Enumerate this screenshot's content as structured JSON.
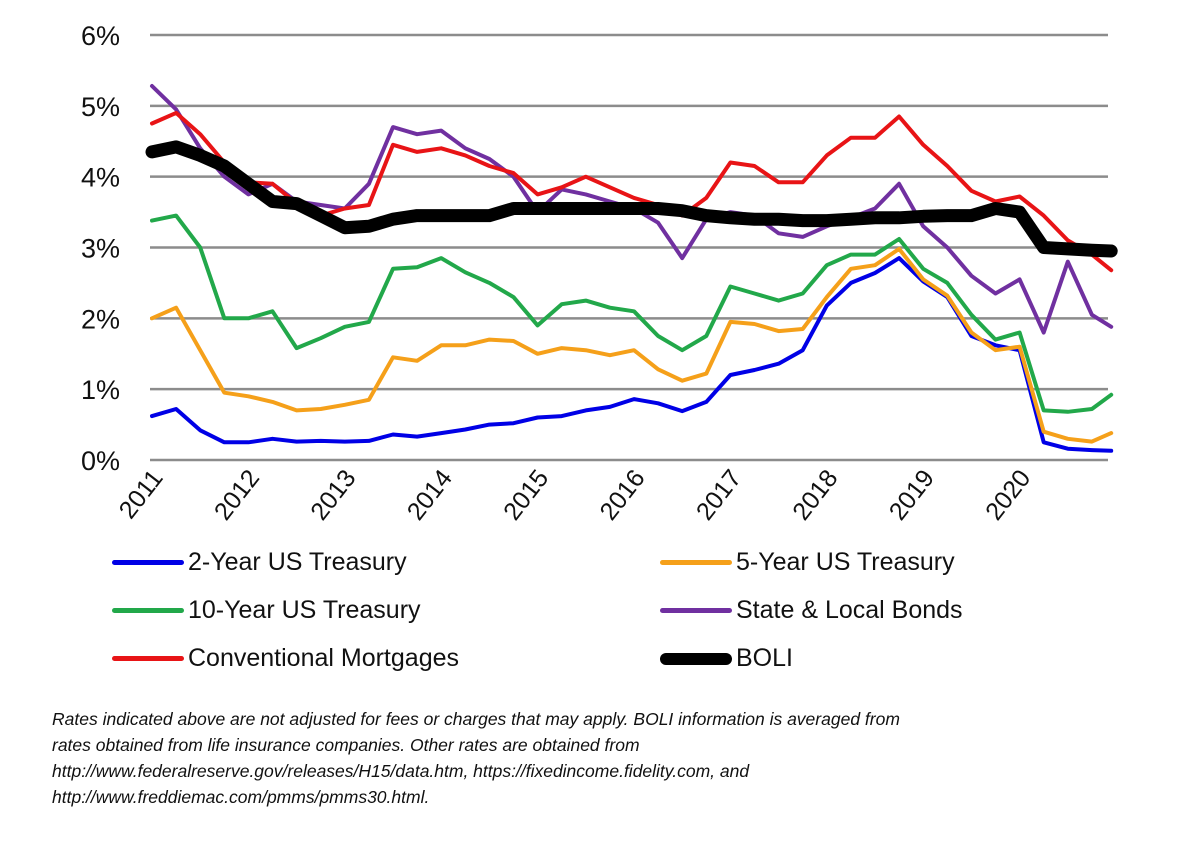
{
  "chart_data": {
    "type": "line",
    "title": "",
    "xlabel": "",
    "ylabel": "",
    "ylim": [
      0,
      6
    ],
    "xlim": [
      2011,
      2020.95
    ],
    "grid": true,
    "legend_position": "bottom",
    "y_ticks": [
      {
        "value": 0,
        "label": "0%"
      },
      {
        "value": 1,
        "label": "1%"
      },
      {
        "value": 2,
        "label": "2%"
      },
      {
        "value": 3,
        "label": "3%"
      },
      {
        "value": 4,
        "label": "4%"
      },
      {
        "value": 5,
        "label": "5%"
      },
      {
        "value": 6,
        "label": "6%"
      }
    ],
    "x_ticks": [
      {
        "value": 2011,
        "label": "2011"
      },
      {
        "value": 2012,
        "label": "2012"
      },
      {
        "value": 2013,
        "label": "2013"
      },
      {
        "value": 2014,
        "label": "2014"
      },
      {
        "value": 2015,
        "label": "2015"
      },
      {
        "value": 2016,
        "label": "2016"
      },
      {
        "value": 2017,
        "label": "2017"
      },
      {
        "value": 2018,
        "label": "2018"
      },
      {
        "value": 2019,
        "label": "2019"
      },
      {
        "value": 2020,
        "label": "2020"
      }
    ],
    "x": [
      2011.0,
      2011.25,
      2011.5,
      2011.75,
      2012.0,
      2012.25,
      2012.5,
      2012.75,
      2013.0,
      2013.25,
      2013.5,
      2013.75,
      2014.0,
      2014.25,
      2014.5,
      2014.75,
      2015.0,
      2015.25,
      2015.5,
      2015.75,
      2016.0,
      2016.25,
      2016.5,
      2016.75,
      2017.0,
      2017.25,
      2017.5,
      2017.75,
      2018.0,
      2018.25,
      2018.5,
      2018.75,
      2019.0,
      2019.25,
      2019.5,
      2019.75,
      2020.0,
      2020.25,
      2020.5,
      2020.75,
      2020.95
    ],
    "series": [
      {
        "name": "2-Year US Treasury",
        "color": "#0000e6",
        "values": [
          0.62,
          0.72,
          0.42,
          0.25,
          0.25,
          0.3,
          0.26,
          0.27,
          0.26,
          0.27,
          0.36,
          0.33,
          0.38,
          0.43,
          0.5,
          0.52,
          0.6,
          0.62,
          0.7,
          0.75,
          0.86,
          0.8,
          0.69,
          0.82,
          1.2,
          1.27,
          1.36,
          1.55,
          2.18,
          2.5,
          2.64,
          2.85,
          2.52,
          2.3,
          1.75,
          1.62,
          1.55,
          0.25,
          0.16,
          0.14,
          0.13
        ]
      },
      {
        "name": "5-Year US Treasury",
        "color": "#f5a01a",
        "values": [
          2.0,
          2.15,
          1.55,
          0.95,
          0.9,
          0.82,
          0.7,
          0.72,
          0.78,
          0.85,
          1.45,
          1.4,
          1.62,
          1.62,
          1.7,
          1.68,
          1.5,
          1.58,
          1.55,
          1.48,
          1.55,
          1.28,
          1.12,
          1.22,
          1.95,
          1.92,
          1.82,
          1.85,
          2.3,
          2.7,
          2.75,
          2.98,
          2.55,
          2.32,
          1.8,
          1.55,
          1.6,
          0.4,
          0.3,
          0.26,
          0.38
        ]
      },
      {
        "name": "10-Year US Treasury",
        "color": "#22a84a",
        "values": [
          3.38,
          3.45,
          3.0,
          2.0,
          2.0,
          2.1,
          1.58,
          1.72,
          1.88,
          1.95,
          2.7,
          2.72,
          2.85,
          2.65,
          2.5,
          2.3,
          1.9,
          2.2,
          2.25,
          2.15,
          2.1,
          1.75,
          1.55,
          1.75,
          2.45,
          2.35,
          2.25,
          2.35,
          2.75,
          2.9,
          2.9,
          3.12,
          2.7,
          2.5,
          2.05,
          1.7,
          1.8,
          0.7,
          0.68,
          0.72,
          0.92
        ]
      },
      {
        "name": "State & Local Bonds",
        "color": "#7030a0",
        "values": [
          5.28,
          4.95,
          4.4,
          4.0,
          3.75,
          3.9,
          3.65,
          3.6,
          3.55,
          3.9,
          4.7,
          4.6,
          4.65,
          4.4,
          4.25,
          4.0,
          3.5,
          3.82,
          3.75,
          3.65,
          3.55,
          3.35,
          2.85,
          3.4,
          3.5,
          3.45,
          3.2,
          3.15,
          3.3,
          3.42,
          3.55,
          3.9,
          3.3,
          3.0,
          2.6,
          2.35,
          2.55,
          1.8,
          2.8,
          2.05,
          1.88
        ]
      },
      {
        "name": "Conventional Mortgages",
        "color": "#e81416",
        "values": [
          4.75,
          4.9,
          4.6,
          4.2,
          3.92,
          3.9,
          3.62,
          3.45,
          3.55,
          3.6,
          4.45,
          4.35,
          4.4,
          4.3,
          4.15,
          4.05,
          3.75,
          3.85,
          4.0,
          3.85,
          3.7,
          3.6,
          3.45,
          3.7,
          4.2,
          4.15,
          3.92,
          3.92,
          4.3,
          4.55,
          4.55,
          4.85,
          4.45,
          4.15,
          3.8,
          3.65,
          3.72,
          3.45,
          3.1,
          2.9,
          2.68
        ]
      },
      {
        "name": "BOLI",
        "color": "#000000",
        "values": [
          4.35,
          4.42,
          4.3,
          4.15,
          3.9,
          3.65,
          3.62,
          3.45,
          3.28,
          3.3,
          3.4,
          3.45,
          3.45,
          3.45,
          3.45,
          3.55,
          3.55,
          3.55,
          3.55,
          3.55,
          3.55,
          3.55,
          3.52,
          3.45,
          3.42,
          3.4,
          3.4,
          3.38,
          3.38,
          3.4,
          3.42,
          3.42,
          3.44,
          3.45,
          3.45,
          3.55,
          3.5,
          3.0,
          2.98,
          2.96,
          2.95
        ]
      }
    ]
  },
  "legend": [
    {
      "label": "2-Year US Treasury",
      "color": "#0000e6",
      "thick": false
    },
    {
      "label": "5-Year US Treasury",
      "color": "#f5a01a",
      "thick": false
    },
    {
      "label": "10-Year US Treasury",
      "color": "#22a84a",
      "thick": false
    },
    {
      "label": "State & Local Bonds",
      "color": "#7030a0",
      "thick": false
    },
    {
      "label": "Conventional Mortgages",
      "color": "#e81416",
      "thick": false
    },
    {
      "label": "BOLI",
      "color": "#000000",
      "thick": true
    }
  ],
  "footnote": {
    "lines": [
      "Rates indicated above are not adjusted for fees or charges that may apply.  BOLI information is averaged from",
      "rates obtained from life insurance companies.  Other rates are obtained from",
      "http://www.federalreserve.gov/releases/H15/data.htm, https://fixedincome.fidelity.com, and",
      "http://www.freddiemac.com/pmms/pmms30.html."
    ]
  }
}
